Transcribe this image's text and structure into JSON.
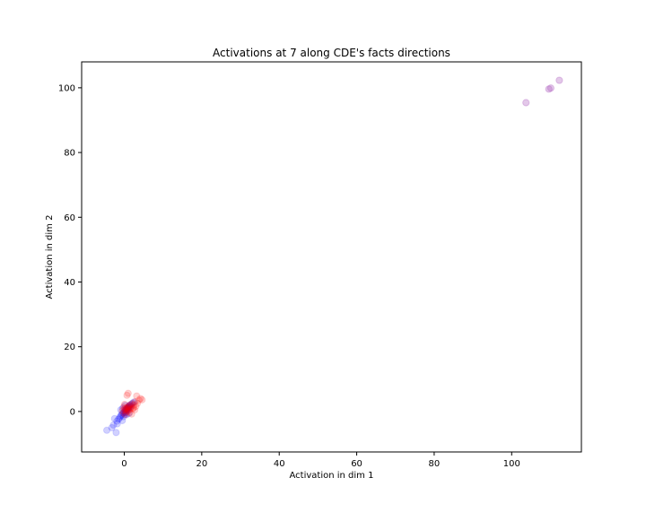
{
  "chart_data": {
    "type": "scatter",
    "title": "Activations at 7 along CDE's facts directions",
    "xlabel": "Activation in dim 1",
    "ylabel": "Activation in dim 2",
    "xlim": [
      -11,
      118
    ],
    "ylim": [
      -12.5,
      108
    ],
    "xticks": [
      "0",
      "20",
      "40",
      "60",
      "80",
      "100"
    ],
    "yticks": [
      "0",
      "20",
      "40",
      "60",
      "80",
      "100"
    ],
    "grid": false,
    "colors": {
      "series_a": "#0000ff",
      "series_b": "#ff0000",
      "outlier": "#b060c0"
    },
    "series": [
      {
        "color": "#0000ff",
        "x": [
          -4.5,
          -3.2,
          -2.8,
          -2.1,
          -1.9,
          -1.5,
          -1.2,
          -1.0,
          -0.8,
          -0.6,
          -0.5,
          -0.3,
          -0.2,
          0.0,
          0.1,
          0.2,
          0.3,
          0.4,
          0.5,
          0.6,
          0.7,
          0.8,
          0.9,
          1.0,
          1.1,
          1.2,
          1.3,
          1.4,
          1.5,
          1.7,
          1.9,
          2.2,
          2.5,
          -1.8,
          -2.5,
          -0.9,
          0.2,
          1.2,
          -0.4,
          0.6
        ],
        "y": [
          -5.8,
          -5.0,
          -4.2,
          -6.5,
          -3.0,
          -2.4,
          -2.0,
          -1.5,
          -1.2,
          -0.8,
          -2.8,
          -0.5,
          -1.6,
          -0.2,
          -0.9,
          0.3,
          -0.4,
          0.6,
          0.1,
          0.8,
          0.4,
          1.1,
          0.7,
          1.3,
          0.9,
          1.5,
          1.8,
          1.2,
          2.0,
          1.6,
          2.3,
          2.6,
          2.9,
          -3.8,
          -2.2,
          0.5,
          1.9,
          -0.6,
          1.0,
          -1.0
        ]
      },
      {
        "color": "#ff0000",
        "x": [
          -0.5,
          -0.2,
          0.0,
          0.2,
          0.4,
          0.5,
          0.6,
          0.8,
          0.9,
          1.0,
          1.1,
          1.2,
          1.3,
          1.5,
          1.6,
          1.8,
          2.0,
          2.2,
          2.5,
          2.8,
          3.0,
          3.4,
          3.8,
          4.2,
          4.6,
          1.0,
          0.7,
          0.3,
          1.9,
          2.4,
          3.2,
          0.1,
          -0.1,
          1.4,
          2.7
        ],
        "y": [
          0.2,
          -0.5,
          0.8,
          0.3,
          1.0,
          -0.2,
          0.6,
          1.2,
          0.1,
          0.9,
          1.5,
          0.4,
          1.8,
          0.7,
          2.1,
          1.3,
          2.4,
          0.9,
          2.0,
          3.0,
          1.6,
          2.5,
          3.5,
          4.0,
          3.6,
          5.6,
          5.0,
          -1.0,
          -0.8,
          1.1,
          4.8,
          2.2,
          1.4,
          -0.3,
          0.5
        ]
      },
      {
        "color": "#b060c0",
        "x": [
          103.7,
          109.6,
          110.1,
          112.3
        ],
        "y": [
          95.4,
          99.6,
          99.9,
          102.3
        ]
      }
    ]
  }
}
